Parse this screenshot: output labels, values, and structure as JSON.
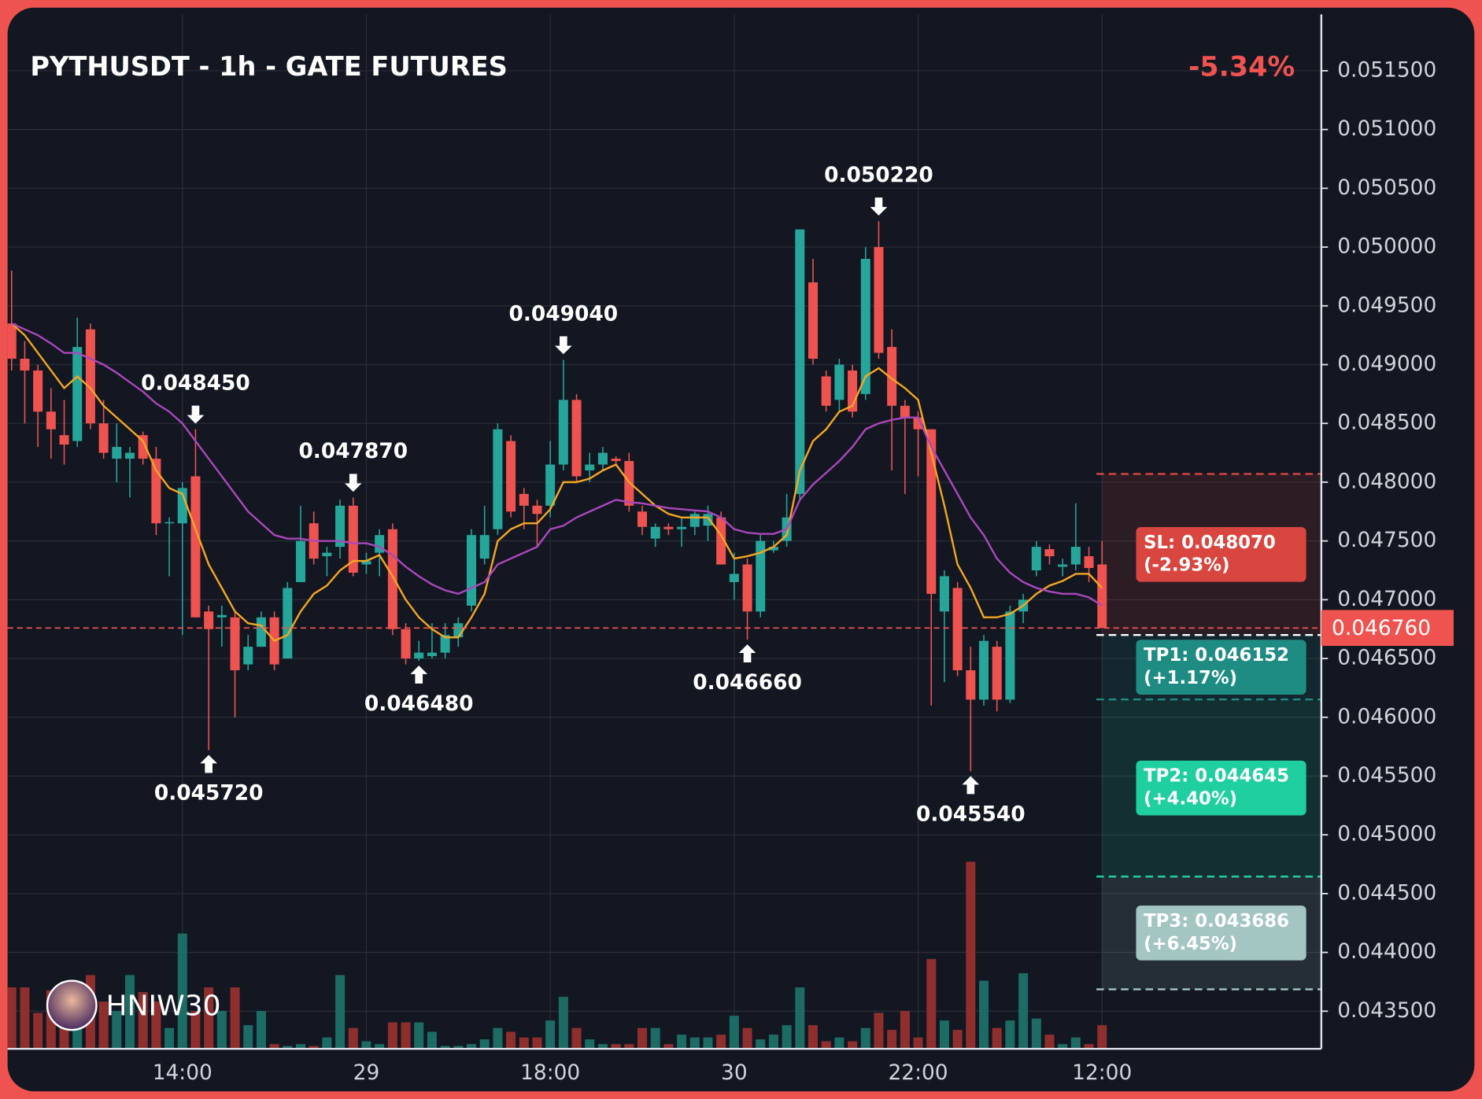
{
  "chart_data": {
    "type": "candlestick",
    "title": "PYTHUSDT - 1h - GATE FUTURES",
    "change": {
      "value": -5.34,
      "label": "-5.34%"
    },
    "watermark": "HNIW30",
    "categories": [
      null,
      null,
      null,
      null,
      null,
      null,
      null,
      null,
      null,
      null,
      null,
      null,
      null,
      "14:00",
      null,
      null,
      null,
      null,
      null,
      null,
      null,
      null,
      null,
      null,
      null,
      null,
      null,
      "29",
      null,
      null,
      null,
      null,
      null,
      null,
      null,
      null,
      null,
      null,
      null,
      null,
      null,
      "18:00",
      null,
      null,
      null,
      null,
      null,
      null,
      null,
      null,
      null,
      null,
      null,
      null,
      null,
      "30",
      null,
      null,
      null,
      null,
      null,
      null,
      null,
      null,
      null,
      null,
      null,
      null,
      null,
      "22:00",
      null,
      null,
      null,
      null,
      null,
      null,
      null,
      null,
      null,
      null,
      null,
      null,
      null,
      "12:00"
    ],
    "open": [
      0.04935,
      0.04905,
      0.04895,
      0.0486,
      0.0484,
      0.04835,
      0.0493,
      0.0485,
      0.0482,
      0.0482,
      0.0484,
      0.0482,
      0.04765,
      0.04765,
      0.04805,
      0.0469,
      0.04685,
      0.04685,
      0.04645,
      0.0466,
      0.04685,
      0.0465,
      0.04715,
      0.04765,
      0.04737,
      0.04745,
      0.0478,
      0.0473,
      0.0474,
      0.0476,
      0.04675,
      0.0465,
      0.04652,
      0.04655,
      0.04668,
      0.04695,
      0.04735,
      0.0476,
      0.04835,
      0.0479,
      0.0478,
      0.0478,
      0.04815,
      0.0487,
      0.0481,
      0.04815,
      0.0482,
      0.04818,
      0.04775,
      0.04752,
      0.04762,
      0.0476,
      0.04762,
      0.04763,
      0.0477,
      0.04715,
      0.0473,
      0.0469,
      0.04742,
      0.0475,
      0.0479,
      0.0497,
      0.0489,
      0.0487,
      0.04895,
      0.04875,
      0.05,
      0.04915,
      0.04865,
      0.04855,
      0.04845,
      0.0469,
      0.0471,
      0.0464,
      0.04615,
      0.0466,
      0.04615,
      0.0469,
      0.04725,
      0.04743,
      0.04728,
      0.0473,
      0.04737,
      0.0473
    ],
    "high": [
      0.0498,
      0.0492,
      0.049,
      0.0488,
      0.0487,
      0.0494,
      0.04935,
      0.0487,
      0.0485,
      0.0483,
      0.04843,
      0.0483,
      0.0477,
      0.048,
      0.04845,
      0.04695,
      0.04695,
      0.0469,
      0.0467,
      0.0469,
      0.0469,
      0.04715,
      0.0478,
      0.04775,
      0.04745,
      0.04785,
      0.04787,
      0.0474,
      0.0476,
      0.04765,
      0.0468,
      0.04665,
      0.0468,
      0.0468,
      0.04685,
      0.0476,
      0.0478,
      0.0485,
      0.0484,
      0.04795,
      0.04785,
      0.04835,
      0.04904,
      0.04875,
      0.04825,
      0.0483,
      0.04822,
      0.04825,
      0.0478,
      0.04765,
      0.04765,
      0.0477,
      0.04775,
      0.0478,
      0.04775,
      0.0474,
      0.04735,
      0.04755,
      0.0475,
      0.0479,
      0.05015,
      0.0499,
      0.04895,
      0.04905,
      0.049,
      0.05,
      0.05022,
      0.0493,
      0.0487,
      0.0486,
      0.04845,
      0.04725,
      0.04715,
      0.0466,
      0.0467,
      0.04665,
      0.04695,
      0.04705,
      0.0475,
      0.04747,
      0.04735,
      0.04782,
      0.04745,
      0.0475
    ],
    "low": [
      0.04895,
      0.0485,
      0.0483,
      0.0482,
      0.04815,
      0.0483,
      0.04845,
      0.0482,
      0.048,
      0.04787,
      0.04815,
      0.04755,
      0.0472,
      0.0467,
      0.04685,
      0.04572,
      0.0466,
      0.046,
      0.0464,
      0.0466,
      0.0464,
      0.0465,
      0.04715,
      0.0473,
      0.0472,
      0.04735,
      0.0472,
      0.04722,
      0.0472,
      0.0467,
      0.04645,
      0.04648,
      0.0465,
      0.0465,
      0.0466,
      0.0469,
      0.0473,
      0.04755,
      0.0477,
      0.0476,
      0.04745,
      0.0477,
      0.0481,
      0.048,
      0.048,
      0.0481,
      0.04815,
      0.04775,
      0.04755,
      0.04745,
      0.04755,
      0.04745,
      0.04755,
      0.0475,
      0.0473,
      0.047,
      0.04666,
      0.04685,
      0.0474,
      0.04745,
      0.04785,
      0.049,
      0.0486,
      0.0486,
      0.04855,
      0.0487,
      0.04905,
      0.0481,
      0.0479,
      0.04805,
      0.0461,
      0.0463,
      0.04635,
      0.04554,
      0.0461,
      0.04605,
      0.04612,
      0.0468,
      0.0472,
      0.0473,
      0.0472,
      0.04725,
      0.04715,
      0.04676
    ],
    "close": [
      0.04905,
      0.04895,
      0.0486,
      0.04845,
      0.04832,
      0.04915,
      0.0485,
      0.04825,
      0.0483,
      0.04825,
      0.0482,
      0.04765,
      0.04766,
      0.04795,
      0.04685,
      0.04675,
      0.04687,
      0.0464,
      0.0466,
      0.04685,
      0.04645,
      0.0471,
      0.0475,
      0.04735,
      0.0474,
      0.0478,
      0.04723,
      0.04733,
      0.04755,
      0.04675,
      0.0465,
      0.04655,
      0.04655,
      0.0467,
      0.0468,
      0.04755,
      0.04755,
      0.04845,
      0.04775,
      0.0478,
      0.04773,
      0.04815,
      0.0487,
      0.04805,
      0.04815,
      0.04825,
      0.04818,
      0.0478,
      0.04762,
      0.04762,
      0.0476,
      0.04762,
      0.04773,
      0.04773,
      0.0473,
      0.04722,
      0.0469,
      0.0475,
      0.04745,
      0.0477,
      0.05015,
      0.04905,
      0.04865,
      0.049,
      0.0486,
      0.0499,
      0.0491,
      0.04865,
      0.04855,
      0.04845,
      0.04705,
      0.0472,
      0.0464,
      0.04615,
      0.04665,
      0.04615,
      0.0469,
      0.047,
      0.04745,
      0.04737,
      0.0473,
      0.04745,
      0.04727,
      0.04676
    ],
    "volume": [
      65,
      65,
      38,
      62,
      60,
      40,
      78,
      50,
      40,
      78,
      60,
      50,
      22,
      122,
      40,
      65,
      40,
      65,
      25,
      40,
      5,
      3,
      5,
      3,
      12,
      78,
      22,
      8,
      5,
      28,
      28,
      28,
      18,
      3,
      3,
      5,
      10,
      22,
      18,
      12,
      12,
      30,
      55,
      22,
      10,
      5,
      5,
      5,
      22,
      22,
      5,
      15,
      12,
      12,
      15,
      35,
      22,
      10,
      15,
      25,
      65,
      25,
      8,
      12,
      8,
      22,
      38,
      20,
      40,
      12,
      95,
      30,
      20,
      198,
      72,
      22,
      30,
      80,
      32,
      15,
      5,
      12,
      5,
      25
    ],
    "up_color": "#26a69a",
    "down_color": "#ef5350",
    "volume_up_color": "#1c6b64",
    "volume_down_color": "#8e2f2e",
    "lines": [
      {
        "color": "#f5a623",
        "values": [
          0.04935,
          0.04925,
          0.0491,
          0.04895,
          0.0488,
          0.0489,
          0.0488,
          0.04865,
          0.04855,
          0.04845,
          0.04835,
          0.0481,
          0.04795,
          0.0479,
          0.0476,
          0.0473,
          0.0471,
          0.0469,
          0.0468,
          0.04678,
          0.04665,
          0.0467,
          0.0469,
          0.04705,
          0.04712,
          0.04725,
          0.04733,
          0.04733,
          0.04738,
          0.0472,
          0.047,
          0.04685,
          0.04675,
          0.04668,
          0.04668,
          0.04685,
          0.04705,
          0.0475,
          0.0476,
          0.04765,
          0.04765,
          0.04777,
          0.048,
          0.048,
          0.04803,
          0.0481,
          0.04815,
          0.048,
          0.0479,
          0.0478,
          0.04773,
          0.0477,
          0.0477,
          0.0477,
          0.04755,
          0.04735,
          0.04737,
          0.0474,
          0.04745,
          0.04755,
          0.0481,
          0.04835,
          0.04845,
          0.0486,
          0.04865,
          0.0489,
          0.04897,
          0.04888,
          0.0488,
          0.0487,
          0.04825,
          0.0478,
          0.0473,
          0.0471,
          0.04685,
          0.04685,
          0.04688,
          0.04695,
          0.04705,
          0.04712,
          0.04716,
          0.04722,
          0.04722,
          0.0471
        ]
      },
      {
        "color": "#ab47bc",
        "values": [
          0.04935,
          0.0493,
          0.04925,
          0.04918,
          0.0491,
          0.0491,
          0.04905,
          0.049,
          0.04893,
          0.04885,
          0.04877,
          0.04867,
          0.0486,
          0.0485,
          0.04835,
          0.0482,
          0.04805,
          0.0479,
          0.04775,
          0.04765,
          0.04755,
          0.04752,
          0.04752,
          0.0475,
          0.0475,
          0.0475,
          0.04748,
          0.04748,
          0.04745,
          0.04738,
          0.04728,
          0.0472,
          0.04713,
          0.04708,
          0.04705,
          0.0471,
          0.04715,
          0.0473,
          0.04735,
          0.0474,
          0.04745,
          0.0476,
          0.04763,
          0.0477,
          0.04775,
          0.0478,
          0.04785,
          0.04783,
          0.04782,
          0.0478,
          0.04778,
          0.04777,
          0.04776,
          0.04775,
          0.0477,
          0.0476,
          0.04757,
          0.04756,
          0.04756,
          0.0476,
          0.04785,
          0.04798,
          0.04808,
          0.04818,
          0.0483,
          0.04845,
          0.0485,
          0.04853,
          0.04855,
          0.04855,
          0.0483,
          0.0481,
          0.0479,
          0.0477,
          0.04755,
          0.04735,
          0.04723,
          0.04715,
          0.0471,
          0.04707,
          0.04705,
          0.04705,
          0.04702,
          0.04695
        ]
      }
    ],
    "extremes": [
      {
        "type": "high",
        "value": 0.04845,
        "label": "0.048450"
      },
      {
        "type": "low",
        "value": 0.04572,
        "label": "0.045720"
      },
      {
        "type": "high",
        "value": 0.04787,
        "label": "0.047870"
      },
      {
        "type": "low",
        "value": 0.04648,
        "label": "0.046480"
      },
      {
        "type": "high",
        "value": 0.04904,
        "label": "0.049040"
      },
      {
        "type": "low",
        "value": 0.04666,
        "label": "0.046660"
      },
      {
        "type": "high",
        "value": 0.05022,
        "label": "0.050220"
      },
      {
        "type": "low",
        "value": 0.04554,
        "label": "0.045540"
      }
    ],
    "last": {
      "value": 0.04676,
      "label": "0.046760",
      "color": "#ef5350"
    },
    "entry": 0.0467,
    "levels": [
      {
        "price": 0.04807,
        "label": "SL: 0.048070",
        "pct": {
          "value": -2.93,
          "label": "(-2.93%)"
        },
        "color": "#d9463f"
      },
      {
        "price": 0.046152,
        "label": "TP1: 0.046152",
        "pct": {
          "value": 1.17,
          "label": "(+1.17%)"
        },
        "color": "#1f8c83"
      },
      {
        "price": 0.044645,
        "label": "TP2: 0.044645",
        "pct": {
          "value": 4.4,
          "label": "(+4.40%)"
        },
        "color": "#1fcf9f"
      },
      {
        "price": 0.043686,
        "label": "TP3: 0.043686",
        "pct": {
          "value": 6.45,
          "label": "(+6.45%)"
        },
        "color": "#a3c6c2"
      }
    ],
    "ylim": [
      0.04318,
      0.05198
    ],
    "yticks": [
      {
        "value": 0.0435,
        "label": "0.043500"
      },
      {
        "value": 0.044,
        "label": "0.044000"
      },
      {
        "value": 0.0445,
        "label": "0.044500"
      },
      {
        "value": 0.045,
        "label": "0.045000"
      },
      {
        "value": 0.0455,
        "label": "0.045500"
      },
      {
        "value": 0.046,
        "label": "0.046000"
      },
      {
        "value": 0.0465,
        "label": "0.046500"
      },
      {
        "value": 0.047,
        "label": "0.047000"
      },
      {
        "value": 0.0475,
        "label": "0.047500"
      },
      {
        "value": 0.048,
        "label": "0.048000"
      },
      {
        "value": 0.0485,
        "label": "0.048500"
      },
      {
        "value": 0.049,
        "label": "0.049000"
      },
      {
        "value": 0.0495,
        "label": "0.049500"
      },
      {
        "value": 0.05,
        "label": "0.050000"
      },
      {
        "value": 0.0505,
        "label": "0.050500"
      },
      {
        "value": 0.051,
        "label": "0.051000"
      },
      {
        "value": 0.0515,
        "label": "0.051500"
      }
    ],
    "grid": true
  }
}
